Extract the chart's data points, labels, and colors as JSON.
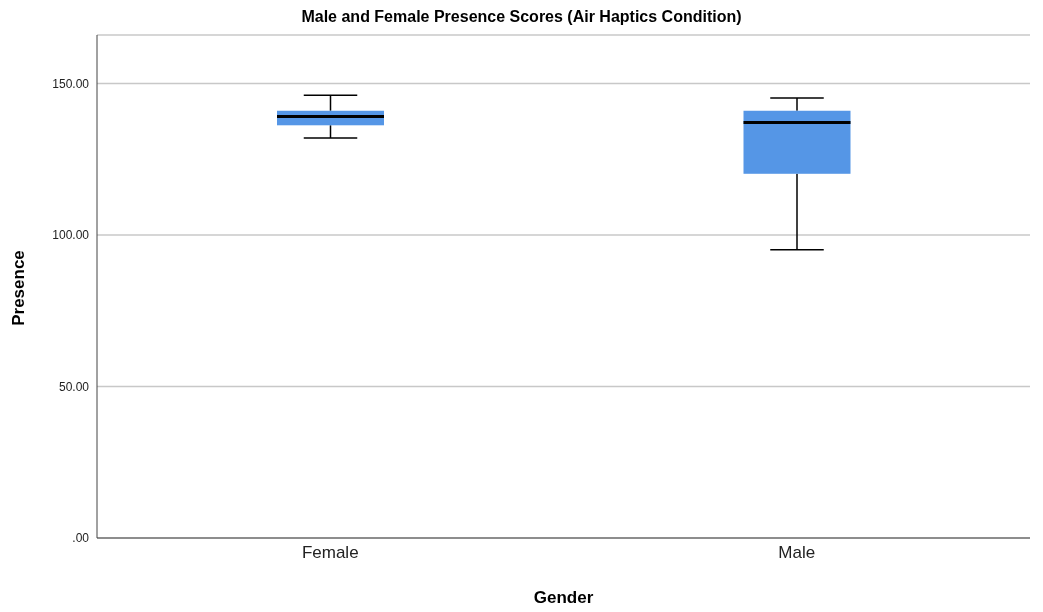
{
  "chart_data": {
    "type": "box",
    "title": "Male and Female Presence Scores (Air Haptics Condition)",
    "xlabel": "Gender",
    "ylabel": "Presence",
    "categories": [
      "Female",
      "Male"
    ],
    "boxes": [
      {
        "low": 132,
        "q1": 136.2,
        "median": 139.1,
        "q3": 141,
        "high": 146.1
      },
      {
        "low": 95.1,
        "q1": 120.2,
        "median": 137.1,
        "q3": 141,
        "high": 145.2
      }
    ],
    "color": "#5596e6",
    "ylim": [
      0,
      166
    ],
    "yticks": [
      {
        "value": 0,
        "label": ".00"
      },
      {
        "value": 50,
        "label": "50.00"
      },
      {
        "value": 100,
        "label": "100.00"
      },
      {
        "value": 150,
        "label": "150.00"
      }
    ],
    "grid": "y",
    "legend": false
  }
}
